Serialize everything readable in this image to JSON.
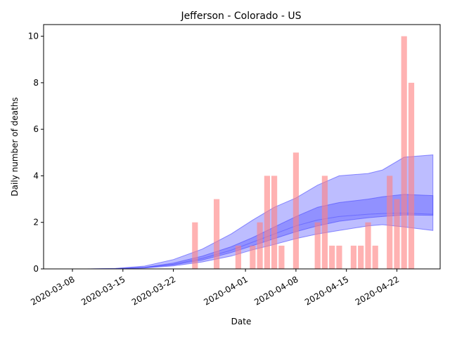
{
  "chart_data": {
    "type": "bar",
    "title": "Jefferson - Colorado - US",
    "xlabel": "Date",
    "ylabel": "Daily number of deaths",
    "xlim": [
      "2020-03-04",
      "2020-04-28"
    ],
    "ylim": [
      0,
      10.5
    ],
    "x_ticks": [
      "2020-03-08",
      "2020-03-15",
      "2020-03-22",
      "2020-04-01",
      "2020-04-08",
      "2020-04-15",
      "2020-04-22"
    ],
    "y_ticks": [
      0,
      2,
      4,
      6,
      8,
      10
    ],
    "grid": false,
    "legend": "none",
    "colors": {
      "bars": "#ff7f7f",
      "band_outer": "#7b7bff",
      "band_inner": "#5a5aff",
      "line": "#4a4aff"
    },
    "bars": {
      "x": [
        "2020-03-25",
        "2020-03-28",
        "2020-03-31",
        "2020-04-02",
        "2020-04-03",
        "2020-04-04",
        "2020-04-05",
        "2020-04-06",
        "2020-04-08",
        "2020-04-11",
        "2020-04-12",
        "2020-04-13",
        "2020-04-14",
        "2020-04-16",
        "2020-04-17",
        "2020-04-18",
        "2020-04-19",
        "2020-04-21",
        "2020-04-22",
        "2020-04-23",
        "2020-04-24"
      ],
      "values": [
        2,
        3,
        1,
        1,
        2,
        4,
        4,
        1,
        5,
        2,
        4,
        1,
        1,
        1,
        1,
        2,
        1,
        4,
        3,
        10,
        8
      ]
    },
    "model_bands": {
      "x": [
        "2020-03-10",
        "2020-03-14",
        "2020-03-18",
        "2020-03-22",
        "2020-03-26",
        "2020-03-30",
        "2020-04-02",
        "2020-04-05",
        "2020-04-08",
        "2020-04-11",
        "2020-04-14",
        "2020-04-18",
        "2020-04-20",
        "2020-04-23",
        "2020-04-27"
      ],
      "median": [
        0,
        0.01,
        0.07,
        0.25,
        0.55,
        0.95,
        1.35,
        1.8,
        2.25,
        2.65,
        2.85,
        3.0,
        3.1,
        3.2,
        3.15
      ],
      "inner_low": [
        0,
        0.01,
        0.05,
        0.17,
        0.38,
        0.7,
        1.0,
        1.3,
        1.6,
        1.85,
        2.05,
        2.2,
        2.25,
        2.32,
        2.3
      ],
      "inner_high": [
        0,
        0.01,
        0.06,
        0.2,
        0.45,
        0.8,
        1.15,
        1.5,
        1.85,
        2.1,
        2.25,
        2.35,
        2.38,
        2.4,
        2.35
      ],
      "outer_low": [
        0,
        0,
        0.04,
        0.13,
        0.3,
        0.55,
        0.82,
        1.05,
        1.3,
        1.5,
        1.65,
        1.85,
        1.9,
        1.8,
        1.65
      ],
      "outer_high": [
        0,
        0.02,
        0.12,
        0.4,
        0.85,
        1.5,
        2.1,
        2.65,
        3.05,
        3.6,
        4.0,
        4.1,
        4.25,
        4.8,
        4.9
      ]
    }
  }
}
